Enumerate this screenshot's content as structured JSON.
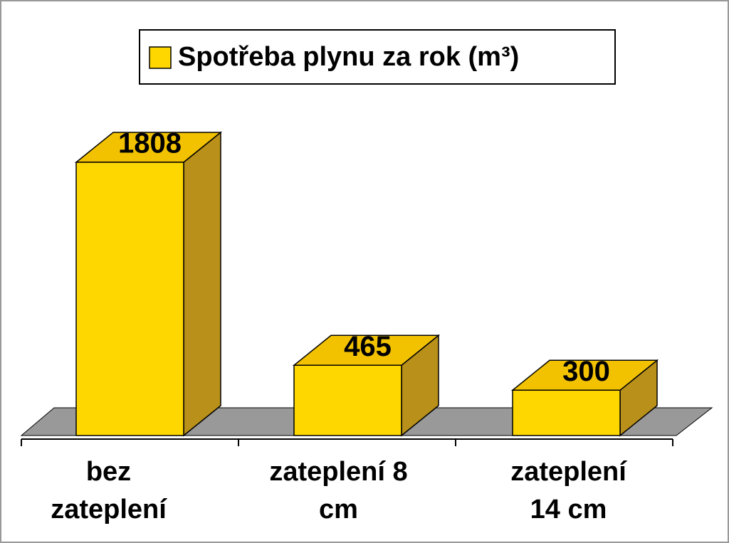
{
  "chart_data": {
    "type": "bar3d",
    "categories": [
      "bez zateplení",
      "zateplení 8 cm",
      "zateplení 14 cm"
    ],
    "series": [
      {
        "name": "Spotřeba plynu za rok (m³)",
        "color": "#ffd700",
        "values": [
          1808,
          465,
          300
        ]
      }
    ],
    "legend": "top"
  }
}
